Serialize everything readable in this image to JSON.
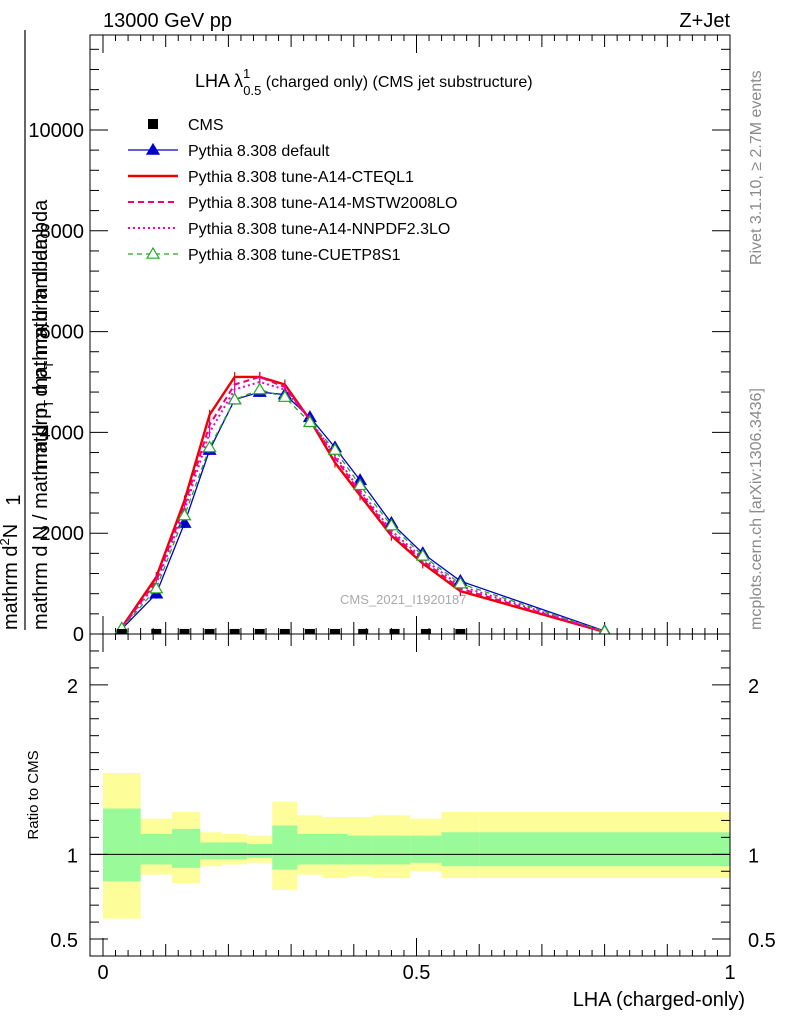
{
  "header": {
    "energy": "13000 GeV pp",
    "process": "Z+Jet"
  },
  "side_text": {
    "rivet": "Rivet 3.1.10, ≥ 2.7M events",
    "url": "mcplots.cern.ch [arXiv:1306.3436]"
  },
  "chart_data": [
    {
      "type": "line",
      "title": "LHA λ",
      "title_sup": "1",
      "title_sub": "0.5",
      "title_tail": " (charged only) (CMS jet substructure)",
      "watermark": "CMS_2021_I1920187",
      "ylabel_numer": "1",
      "ylabel_denom": "mathrm d N / mathrm d p",
      "ylabel_denom_sub": "T",
      "ylabel_denom_tail": " mathrm d lambda",
      "ylabel_top": "mathrm d",
      "ylabel_top_sup": "2",
      "ylabel_top_tail": "N",
      "ylabel_top_line2": "mathrm d p",
      "ylabel_top_line2_sub": "T",
      "ylabel_top_line2_tail": " mathrm d lambda",
      "xlim": [
        0,
        1
      ],
      "ylim": [
        0,
        11884
      ],
      "y_ticks": [
        0,
        2000,
        4000,
        6000,
        8000,
        10000
      ],
      "y_tick_labels": [
        "0",
        "2000",
        "4000",
        "6000",
        "8000",
        "10000"
      ],
      "x": [
        0.03,
        0.085,
        0.13,
        0.17,
        0.21,
        0.25,
        0.29,
        0.33,
        0.37,
        0.41,
        0.46,
        0.51,
        0.57,
        0.8
      ],
      "cms_x": [
        0.03,
        0.085,
        0.13,
        0.17,
        0.21,
        0.25,
        0.29,
        0.33,
        0.37,
        0.415,
        0.465,
        0.515,
        0.57
      ],
      "cms_values": [
        1,
        1,
        1,
        1,
        1,
        1,
        1,
        1,
        1,
        1,
        1,
        1,
        1
      ],
      "legend": [
        {
          "label": "CMS",
          "color": "#000000",
          "style": "marker-square"
        },
        {
          "label": "Pythia 8.308 default",
          "color": "#0000cc",
          "style": "solid-triangle"
        },
        {
          "label": "Pythia 8.308 tune-A14-CTEQL1",
          "color": "#ee0000",
          "style": "solid-thick"
        },
        {
          "label": "Pythia 8.308 tune-A14-MSTW2008LO",
          "color": "#ee0077",
          "style": "dashed"
        },
        {
          "label": "Pythia 8.308 tune-A14-NNPDF2.3LO",
          "color": "#ee00cc",
          "style": "dotted"
        },
        {
          "label": "Pythia 8.308 tune-CUETP8S1",
          "color": "#22aa22",
          "style": "dashed-open-triangle"
        }
      ],
      "series": [
        {
          "name": "Pythia 8.308 default",
          "color": "#0000cc",
          "values": [
            100,
            800,
            2200,
            3650,
            4650,
            4800,
            4750,
            4300,
            3700,
            3050,
            2200,
            1600,
            1050,
            60
          ]
        },
        {
          "name": "Pythia 8.308 tune-A14-CTEQL1",
          "color": "#ee0000",
          "values": [
            130,
            1130,
            2650,
            4350,
            5100,
            5100,
            4950,
            4250,
            3400,
            2750,
            1950,
            1400,
            850,
            40
          ]
        },
        {
          "name": "Pythia 8.308 tune-A14-MSTW2008LO",
          "color": "#ee0077",
          "values": [
            120,
            1050,
            2550,
            4150,
            4950,
            5100,
            4900,
            4250,
            3500,
            2800,
            2000,
            1450,
            900,
            40
          ]
        },
        {
          "name": "Pythia 8.308 tune-A14-NNPDF2.3LO",
          "color": "#ee00cc",
          "values": [
            120,
            1000,
            2450,
            4000,
            4850,
            5000,
            4850,
            4250,
            3550,
            2850,
            2050,
            1500,
            950,
            45
          ]
        },
        {
          "name": "Pythia 8.308 tune-CUETP8S1",
          "color": "#22aa22",
          "values": [
            110,
            900,
            2350,
            3700,
            4650,
            4850,
            4700,
            4200,
            3650,
            2950,
            2150,
            1550,
            1000,
            50
          ]
        }
      ]
    },
    {
      "type": "area",
      "ylabel": "Ratio to CMS",
      "xlabel": "LHA (charged-only)",
      "xlim": [
        0,
        1
      ],
      "ylim": [
        0.4,
        2.3
      ],
      "x_ticks": [
        0,
        0.5,
        1
      ],
      "x_tick_labels": [
        "0",
        "0.5",
        "1"
      ],
      "y_ticks": [
        0.5,
        1,
        2
      ],
      "y_tick_labels": [
        "0.5",
        "1",
        "2"
      ],
      "reference": 1,
      "bins": [
        0,
        0.06,
        0.11,
        0.155,
        0.19,
        0.23,
        0.27,
        0.31,
        0.35,
        0.39,
        0.43,
        0.49,
        0.54,
        0.6,
        1
      ],
      "band_yellow": [
        [
          0.62,
          1.48
        ],
        [
          0.88,
          1.21
        ],
        [
          0.83,
          1.25
        ],
        [
          0.93,
          1.13
        ],
        [
          0.94,
          1.12
        ],
        [
          0.95,
          1.11
        ],
        [
          0.79,
          1.31
        ],
        [
          0.88,
          1.23
        ],
        [
          0.86,
          1.22
        ],
        [
          0.87,
          1.22
        ],
        [
          0.86,
          1.23
        ],
        [
          0.9,
          1.21
        ],
        [
          0.86,
          1.25
        ],
        [
          0.86,
          1.25
        ]
      ],
      "band_green": [
        [
          0.84,
          1.27
        ],
        [
          0.94,
          1.12
        ],
        [
          0.92,
          1.15
        ],
        [
          0.97,
          1.07
        ],
        [
          0.97,
          1.07
        ],
        [
          0.98,
          1.06
        ],
        [
          0.91,
          1.17
        ],
        [
          0.94,
          1.12
        ],
        [
          0.94,
          1.12
        ],
        [
          0.94,
          1.11
        ],
        [
          0.94,
          1.11
        ],
        [
          0.95,
          1.11
        ],
        [
          0.93,
          1.13
        ],
        [
          0.93,
          1.13
        ]
      ]
    }
  ]
}
